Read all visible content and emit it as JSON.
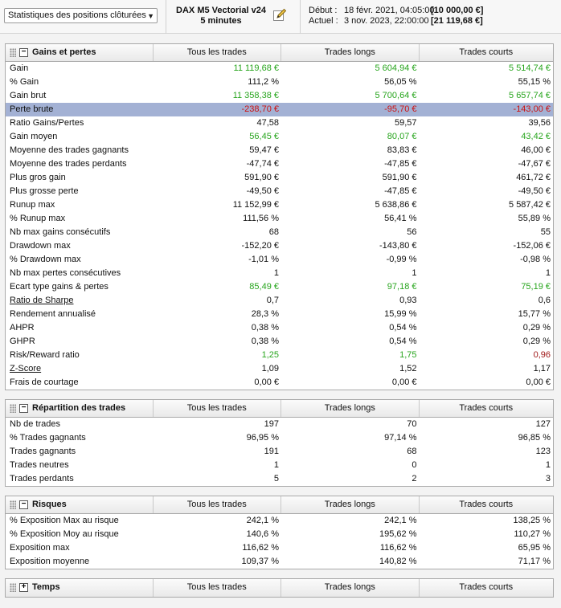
{
  "toolbar": {
    "view_select": "Statistiques des positions clôturées",
    "instrument_line1": "DAX M5 Vectorial v24",
    "instrument_line2": "5 minutes",
    "start_label": "Début :",
    "start_date": "18 févr. 2021, 04:05:00",
    "start_value": "[10 000,00 €]",
    "end_label": "Actuel :",
    "end_date": "3 nov. 2023, 22:00:00",
    "end_value": "[21 119,68 €]"
  },
  "columns": [
    "Tous les trades",
    "Trades longs",
    "Trades courts"
  ],
  "colors": {
    "positive": "#27a51d",
    "negative": "#cc1111",
    "highlight": "#a3b1d4"
  },
  "sections": [
    {
      "title": "Gains et pertes",
      "toggle": "−",
      "rows": [
        {
          "label": "Gain",
          "values": [
            "11 119,68 €",
            "5 604,94 €",
            "5 514,74 €"
          ],
          "color": "green"
        },
        {
          "label": "% Gain",
          "values": [
            "111,2 %",
            "56,05 %",
            "55,15 %"
          ]
        },
        {
          "label": "Gain brut",
          "values": [
            "11 358,38 €",
            "5 700,64 €",
            "5 657,74 €"
          ],
          "color": "green"
        },
        {
          "label": "Perte brute",
          "values": [
            "-238,70 €",
            "-95,70 €",
            "-143,00 €"
          ],
          "color": "red",
          "highlight": true
        },
        {
          "label": "Ratio Gains/Pertes",
          "values": [
            "47,58",
            "59,57",
            "39,56"
          ]
        },
        {
          "label": "Gain moyen",
          "values": [
            "56,45 €",
            "80,07 €",
            "43,42 €"
          ],
          "color": "green"
        },
        {
          "label": "Moyenne des trades gagnants",
          "values": [
            "59,47 €",
            "83,83 €",
            "46,00 €"
          ]
        },
        {
          "label": "Moyenne des trades perdants",
          "values": [
            "-47,74 €",
            "-47,85 €",
            "-47,67 €"
          ]
        },
        {
          "label": "Plus gros gain",
          "values": [
            "591,90 €",
            "591,90 €",
            "461,72 €"
          ]
        },
        {
          "label": "Plus grosse perte",
          "values": [
            "-49,50 €",
            "-47,85 €",
            "-49,50 €"
          ]
        },
        {
          "label": "Runup max",
          "values": [
            "11 152,99 €",
            "5 638,86 €",
            "5 587,42 €"
          ]
        },
        {
          "label": "% Runup max",
          "values": [
            "111,56 %",
            "56,41 %",
            "55,89 %"
          ]
        },
        {
          "label": "Nb max gains consécutifs",
          "values": [
            "68",
            "56",
            "55"
          ]
        },
        {
          "label": "Drawdown max",
          "values": [
            "-152,20 €",
            "-143,80 €",
            "-152,06 €"
          ]
        },
        {
          "label": "% Drawdown max",
          "values": [
            "-1,01 %",
            "-0,99 %",
            "-0,98 %"
          ]
        },
        {
          "label": "Nb max pertes consécutives",
          "values": [
            "1",
            "1",
            "1"
          ]
        },
        {
          "label": "Ecart type gains & pertes",
          "values": [
            "85,49 €",
            "97,18 €",
            "75,19 €"
          ],
          "color": "green"
        },
        {
          "label": "Ratio de Sharpe",
          "values": [
            "0,7",
            "0,93",
            "0,6"
          ],
          "underline": true
        },
        {
          "label": "Rendement annualisé",
          "values": [
            "28,3 %",
            "15,99 %",
            "15,77 %"
          ]
        },
        {
          "label": "AHPR",
          "values": [
            "0,38 %",
            "0,54 %",
            "0,29 %"
          ]
        },
        {
          "label": "GHPR",
          "values": [
            "0,38 %",
            "0,54 %",
            "0,29 %"
          ]
        },
        {
          "label": "Risk/Reward ratio",
          "values": [
            "1,25",
            "1,75",
            "0,96"
          ],
          "colors": [
            "green",
            "green",
            "darkred"
          ]
        },
        {
          "label": "Z-Score",
          "values": [
            "1,09",
            "1,52",
            "1,17"
          ],
          "underline": true
        },
        {
          "label": "Frais de courtage",
          "values": [
            "0,00 €",
            "0,00 €",
            "0,00 €"
          ]
        }
      ]
    },
    {
      "title": "Répartition des trades",
      "toggle": "−",
      "rows": [
        {
          "label": "Nb de trades",
          "values": [
            "197",
            "70",
            "127"
          ]
        },
        {
          "label": "% Trades gagnants",
          "values": [
            "96,95 %",
            "97,14 %",
            "96,85 %"
          ]
        },
        {
          "label": "Trades gagnants",
          "values": [
            "191",
            "68",
            "123"
          ]
        },
        {
          "label": "Trades neutres",
          "values": [
            "1",
            "0",
            "1"
          ]
        },
        {
          "label": "Trades perdants",
          "values": [
            "5",
            "2",
            "3"
          ]
        }
      ]
    },
    {
      "title": "Risques",
      "toggle": "−",
      "rows": [
        {
          "label": "% Exposition Max au risque",
          "values": [
            "242,1 %",
            "242,1 %",
            "138,25 %"
          ]
        },
        {
          "label": "% Exposition Moy au risque",
          "values": [
            "140,6 %",
            "195,62 %",
            "110,27 %"
          ]
        },
        {
          "label": "Exposition max",
          "values": [
            "116,62 %",
            "116,62 %",
            "65,95 %"
          ]
        },
        {
          "label": "Exposition moyenne",
          "values": [
            "109,37 %",
            "140,82 %",
            "71,17 %"
          ]
        }
      ]
    },
    {
      "title": "Temps",
      "toggle": "+",
      "rows": []
    }
  ]
}
